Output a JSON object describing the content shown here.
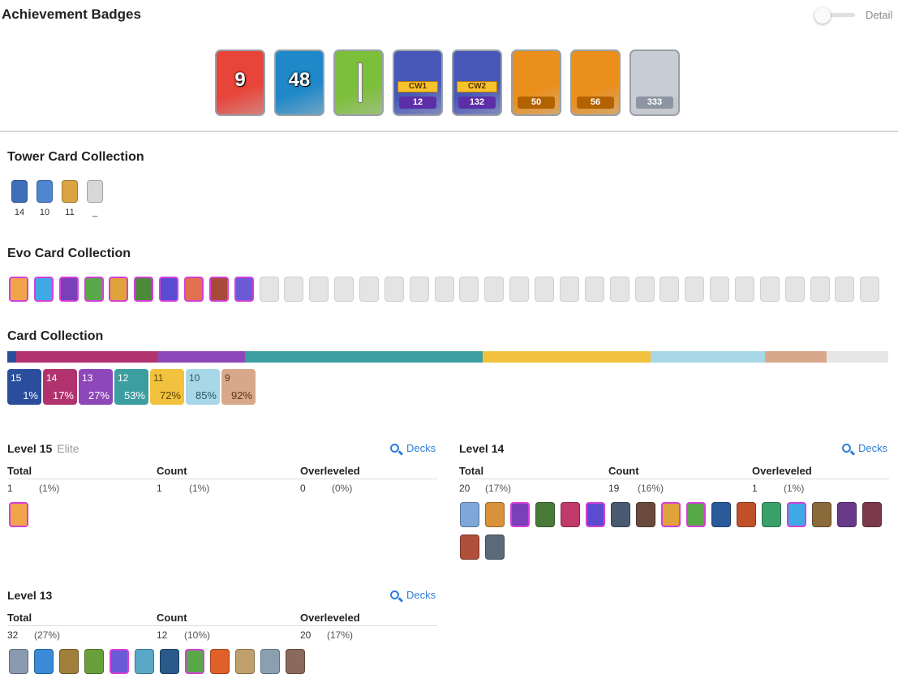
{
  "header": {
    "title": "Achievement Badges",
    "detail_label": "Detail"
  },
  "badges": [
    {
      "name": "years-played-badge",
      "label": "9",
      "bg": "#e8443a",
      "kind": "big"
    },
    {
      "name": "level-badge",
      "label": "48",
      "bg": "#1f88c9",
      "kind": "big"
    },
    {
      "name": "classic-badge",
      "label": "",
      "bg": "#7cbf3a",
      "kind": "plain"
    },
    {
      "name": "cw1-badge",
      "label": "12",
      "tag": "CW1",
      "bg": "#4758b8",
      "plate": "#5c2fa8",
      "kind": "cw"
    },
    {
      "name": "cw2-badge",
      "label": "132",
      "tag": "CW2",
      "bg": "#4758b8",
      "plate": "#5c2fa8",
      "kind": "cw"
    },
    {
      "name": "crl-badge",
      "label": "50",
      "bg": "#ea8f1c",
      "plate": "#b36200",
      "kind": "plate"
    },
    {
      "name": "crown-badge",
      "label": "56",
      "bg": "#ea8f1c",
      "plate": "#b36200",
      "kind": "plate"
    },
    {
      "name": "collection-badge",
      "label": "333",
      "bg": "#c9ced6",
      "plate": "#8c95a1",
      "kind": "plate"
    }
  ],
  "tower": {
    "title": "Tower Card Collection",
    "cards": [
      {
        "level": "14",
        "color": "#3f6fb8"
      },
      {
        "level": "10",
        "color": "#4e86cf"
      },
      {
        "level": "11",
        "color": "#d9a441"
      },
      {
        "level": "_",
        "color": "#d8d8d8"
      }
    ]
  },
  "evo": {
    "title": "Evo Card Collection",
    "owned_colors": [
      "#f0a54a",
      "#3fa9e6",
      "#7b3fb8",
      "#58a84a",
      "#e0a23a",
      "#4c8a3a",
      "#5a4bd0",
      "#e07050",
      "#a84a3a",
      "#6a5ad6"
    ],
    "locked_count": 25
  },
  "collection": {
    "title": "Card Collection",
    "bar": [
      {
        "color": "#2a4d9c",
        "pct": 1
      },
      {
        "color": "#b0336e",
        "pct": 16
      },
      {
        "color": "#8e47b8",
        "pct": 10
      },
      {
        "color": "#3d9ea0",
        "pct": 27
      },
      {
        "color": "#f2c23e",
        "pct": 19
      },
      {
        "color": "#a8d8e8",
        "pct": 13
      },
      {
        "color": "#d9a88a",
        "pct": 7
      },
      {
        "color": "#e6e6e6",
        "pct": 7
      }
    ],
    "levels": [
      {
        "level": "15",
        "pct": "1%",
        "color": "#2a4d9c",
        "text": "#ffffff"
      },
      {
        "level": "14",
        "pct": "17%",
        "color": "#b0336e",
        "text": "#ffffff"
      },
      {
        "level": "13",
        "pct": "27%",
        "color": "#8e47b8",
        "text": "#ffffff"
      },
      {
        "level": "12",
        "pct": "53%",
        "color": "#3d9ea0",
        "text": "#ffffff"
      },
      {
        "level": "11",
        "pct": "72%",
        "color": "#f2c23e",
        "text": "#5a4400"
      },
      {
        "level": "10",
        "pct": "85%",
        "color": "#a8d8e8",
        "text": "#2b5566"
      },
      {
        "level": "9",
        "pct": "92%",
        "color": "#d9a88a",
        "text": "#5a3520"
      }
    ]
  },
  "panels": {
    "decks_label": "Decks",
    "col_total": "Total",
    "col_count": "Count",
    "col_over": "Overleveled",
    "l15": {
      "title": "Level 15",
      "tag": "Elite",
      "total": "1",
      "total_pct": "(1%)",
      "count": "1",
      "count_pct": "(1%)",
      "over": "0",
      "over_pct": "(0%)",
      "cards": [
        {
          "color": "#f0a54a",
          "evo": true
        }
      ]
    },
    "l14": {
      "title": "Level 14",
      "total": "20",
      "total_pct": "(17%)",
      "count": "19",
      "count_pct": "(16%)",
      "over": "1",
      "over_pct": "(1%)",
      "cards": [
        {
          "color": "#7fa8d8",
          "evo": false
        },
        {
          "color": "#d9913a",
          "evo": false
        },
        {
          "color": "#7b3fb8",
          "evo": true
        },
        {
          "color": "#4a7a3a",
          "evo": false
        },
        {
          "color": "#c03a6a",
          "evo": false
        },
        {
          "color": "#5a4bd0",
          "evo": true
        },
        {
          "color": "#4a5a72",
          "evo": false
        },
        {
          "color": "#6a4a3a",
          "evo": false
        },
        {
          "color": "#e0a23a",
          "evo": true
        },
        {
          "color": "#58a84a",
          "evo": true
        },
        {
          "color": "#2a5a9a",
          "evo": false
        },
        {
          "color": "#c0502a",
          "evo": false
        },
        {
          "color": "#3aa06a",
          "evo": false
        },
        {
          "color": "#3fa9e6",
          "evo": true
        },
        {
          "color": "#8a6a3a",
          "evo": false
        },
        {
          "color": "#6a3a8a",
          "evo": false
        },
        {
          "color": "#7a3a4a",
          "evo": false
        },
        {
          "color": "#b0503a",
          "evo": false
        },
        {
          "color": "#5a6a7a",
          "evo": false
        }
      ]
    },
    "l13": {
      "title": "Level 13",
      "total": "32",
      "total_pct": "(27%)",
      "count": "12",
      "count_pct": "(10%)",
      "over": "20",
      "over_pct": "(17%)",
      "cards": [
        {
          "color": "#8a9ab0",
          "evo": false
        },
        {
          "color": "#3a8ad8",
          "evo": false
        },
        {
          "color": "#a0803a",
          "evo": false
        },
        {
          "color": "#6aa03a",
          "evo": false
        },
        {
          "color": "#6a5ad6",
          "evo": true
        },
        {
          "color": "#5aa8c8",
          "evo": false
        },
        {
          "color": "#2a5a8a",
          "evo": false
        },
        {
          "color": "#58a84a",
          "evo": true
        },
        {
          "color": "#e0602a",
          "evo": false
        },
        {
          "color": "#c0a06a",
          "evo": false
        },
        {
          "color": "#8aa0b0",
          "evo": false
        },
        {
          "color": "#8a6a5a",
          "evo": false
        }
      ]
    }
  }
}
